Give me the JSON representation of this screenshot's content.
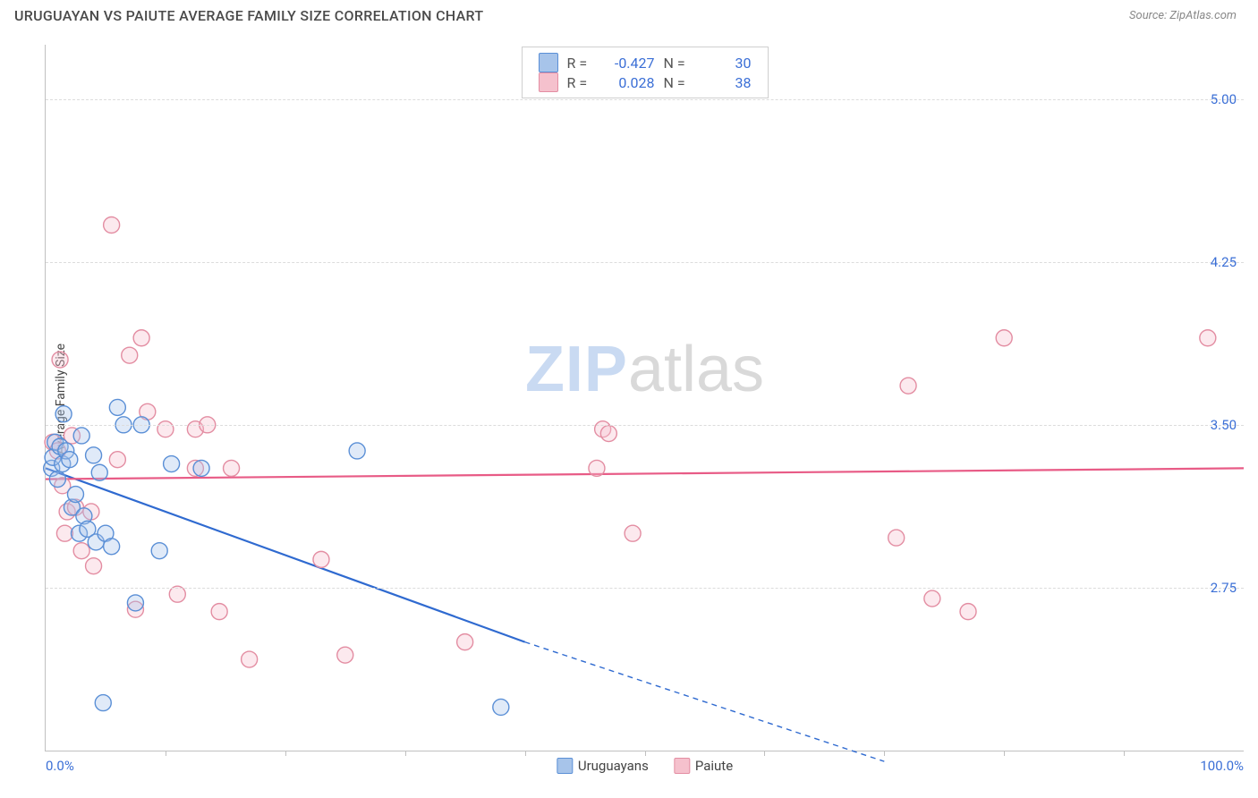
{
  "header": {
    "title": "URUGUAYAN VS PAIUTE AVERAGE FAMILY SIZE CORRELATION CHART",
    "source_label": "Source: ZipAtlas.com"
  },
  "chart": {
    "type": "scatter",
    "ylabel": "Average Family Size",
    "xlim": [
      0,
      100
    ],
    "ylim": [
      2.0,
      5.25
    ],
    "ytick_values": [
      2.75,
      3.5,
      4.25,
      5.0
    ],
    "ytick_labels": [
      "2.75",
      "3.50",
      "4.25",
      "5.00"
    ],
    "xtick_positions_pct": [
      10,
      20,
      30,
      40,
      50,
      60,
      70,
      80,
      90
    ],
    "xaxis_left_label": "0.0%",
    "xaxis_right_label": "100.0%",
    "grid_color": "#dcdcdc",
    "background": "#ffffff",
    "series": {
      "uruguayans": {
        "label": "Uruguayans",
        "fill": "#a7c4ea",
        "stroke": "#5a8fd6",
        "marker_radius": 9,
        "r_value": "-0.427",
        "n_value": "30",
        "trend": {
          "color": "#2f6ad0",
          "solid_until_x": 40,
          "y_at_0": 3.3,
          "y_at_40": 2.5,
          "y_at_70": 1.95,
          "width": 2.2
        },
        "points": [
          {
            "x": 0.5,
            "y": 3.3
          },
          {
            "x": 0.6,
            "y": 3.35
          },
          {
            "x": 0.8,
            "y": 3.42
          },
          {
            "x": 1.0,
            "y": 3.25
          },
          {
            "x": 1.2,
            "y": 3.4
          },
          {
            "x": 1.4,
            "y": 3.32
          },
          {
            "x": 1.5,
            "y": 3.55
          },
          {
            "x": 1.7,
            "y": 3.38
          },
          {
            "x": 2.0,
            "y": 3.34
          },
          {
            "x": 2.2,
            "y": 3.12
          },
          {
            "x": 2.5,
            "y": 3.18
          },
          {
            "x": 2.8,
            "y": 3.0
          },
          {
            "x": 3.0,
            "y": 3.45
          },
          {
            "x": 3.2,
            "y": 3.08
          },
          {
            "x": 3.5,
            "y": 3.02
          },
          {
            "x": 4.0,
            "y": 3.36
          },
          {
            "x": 4.2,
            "y": 2.96
          },
          {
            "x": 4.5,
            "y": 3.28
          },
          {
            "x": 5.0,
            "y": 3.0
          },
          {
            "x": 5.5,
            "y": 2.94
          },
          {
            "x": 6.0,
            "y": 3.58
          },
          {
            "x": 6.5,
            "y": 3.5
          },
          {
            "x": 7.5,
            "y": 2.68
          },
          {
            "x": 8.0,
            "y": 3.5
          },
          {
            "x": 9.5,
            "y": 2.92
          },
          {
            "x": 10.5,
            "y": 3.32
          },
          {
            "x": 13.0,
            "y": 3.3
          },
          {
            "x": 4.8,
            "y": 2.22
          },
          {
            "x": 26.0,
            "y": 3.38
          },
          {
            "x": 38.0,
            "y": 2.2
          }
        ]
      },
      "paiute": {
        "label": "Paiute",
        "fill": "#f5c1cd",
        "stroke": "#e38da2",
        "marker_radius": 9,
        "r_value": "0.028",
        "n_value": "38",
        "trend": {
          "color": "#e85b86",
          "y_at_0": 3.25,
          "y_at_100": 3.3,
          "width": 2.2
        },
        "points": [
          {
            "x": 0.6,
            "y": 3.42
          },
          {
            "x": 1.0,
            "y": 3.38
          },
          {
            "x": 1.2,
            "y": 3.8
          },
          {
            "x": 1.4,
            "y": 3.22
          },
          {
            "x": 1.6,
            "y": 3.0
          },
          {
            "x": 1.8,
            "y": 3.1
          },
          {
            "x": 2.2,
            "y": 3.45
          },
          {
            "x": 2.5,
            "y": 3.12
          },
          {
            "x": 3.0,
            "y": 2.92
          },
          {
            "x": 3.8,
            "y": 3.1
          },
          {
            "x": 4.0,
            "y": 2.85
          },
          {
            "x": 5.5,
            "y": 4.42
          },
          {
            "x": 6.0,
            "y": 3.34
          },
          {
            "x": 7.0,
            "y": 3.82
          },
          {
            "x": 7.5,
            "y": 2.65
          },
          {
            "x": 8.0,
            "y": 3.9
          },
          {
            "x": 8.5,
            "y": 3.56
          },
          {
            "x": 10.0,
            "y": 3.48
          },
          {
            "x": 11.0,
            "y": 2.72
          },
          {
            "x": 12.5,
            "y": 3.3
          },
          {
            "x": 12.5,
            "y": 3.48
          },
          {
            "x": 13.5,
            "y": 3.5
          },
          {
            "x": 14.5,
            "y": 2.64
          },
          {
            "x": 15.5,
            "y": 3.3
          },
          {
            "x": 17.0,
            "y": 2.42
          },
          {
            "x": 23.0,
            "y": 2.88
          },
          {
            "x": 25.0,
            "y": 2.44
          },
          {
            "x": 35.0,
            "y": 2.5
          },
          {
            "x": 46.0,
            "y": 3.3
          },
          {
            "x": 46.5,
            "y": 3.48
          },
          {
            "x": 47.0,
            "y": 3.46
          },
          {
            "x": 49.0,
            "y": 3.0
          },
          {
            "x": 71.0,
            "y": 2.98
          },
          {
            "x": 72.0,
            "y": 3.68
          },
          {
            "x": 74.0,
            "y": 2.7
          },
          {
            "x": 77.0,
            "y": 2.64
          },
          {
            "x": 80.0,
            "y": 3.9
          },
          {
            "x": 97.0,
            "y": 3.9
          }
        ]
      }
    },
    "watermark": {
      "zip": "ZIP",
      "atlas": "atlas"
    }
  }
}
